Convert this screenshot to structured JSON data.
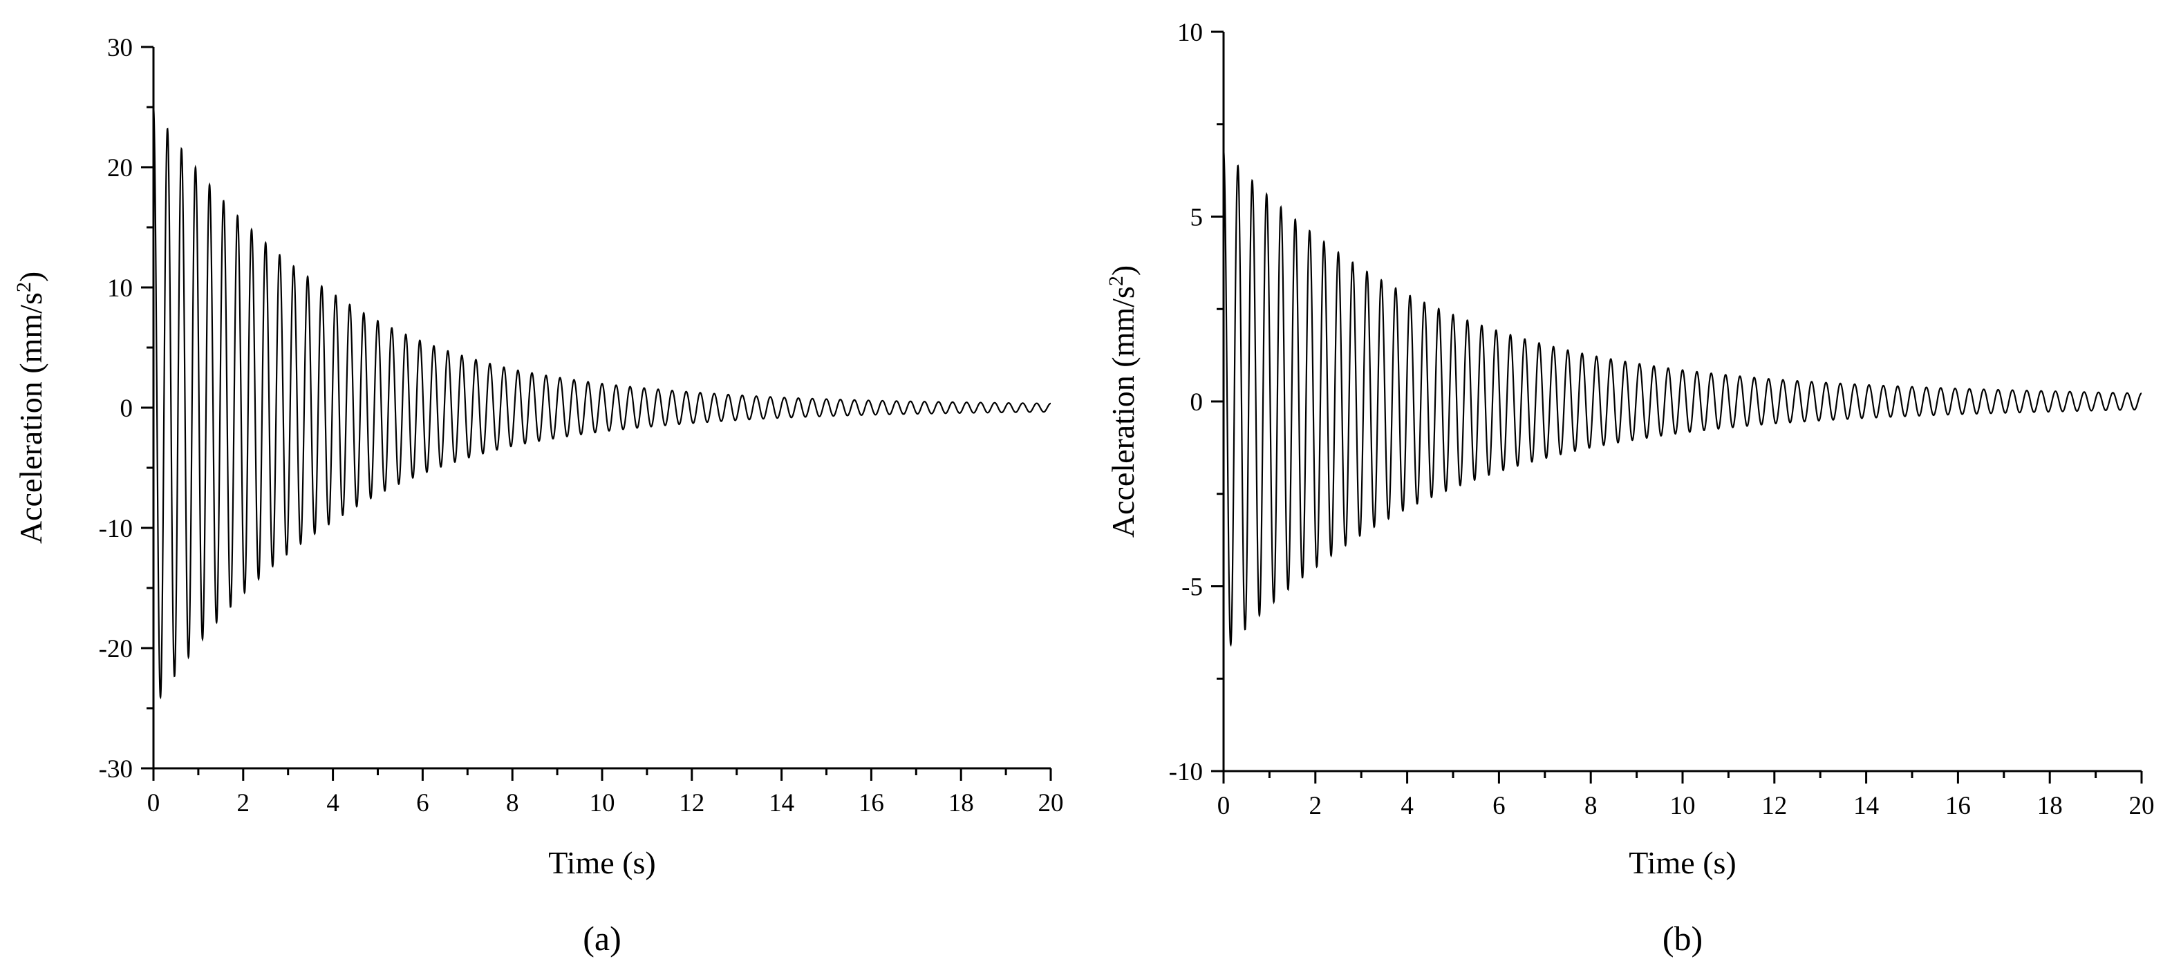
{
  "chart_data": [
    {
      "type": "line",
      "panel_label": "(a)",
      "xlabel": "Time (s)",
      "ylabel": "Acceleration (mm/s²)",
      "ylabel_parts": {
        "text": "Acceleration (mm/s",
        "sup": "2",
        "close": ")"
      },
      "xlim": [
        0,
        20
      ],
      "ylim": [
        -30,
        30
      ],
      "xticks": [
        "0",
        "2",
        "4",
        "6",
        "8",
        "10",
        "12",
        "14",
        "16",
        "18",
        "20"
      ],
      "yticks": [
        "-30",
        "-20",
        "-10",
        "0",
        "10",
        "20",
        "30"
      ],
      "grid": false,
      "legend": "none",
      "series": [
        {
          "signal": "damped oscillation",
          "color": "#000000",
          "peak_envelope": {
            "t": [
              0,
              2,
              4,
              6,
              8,
              10,
              12,
              14,
              16,
              18,
              20
            ],
            "amplitude": [
              25,
              15.5,
              9.5,
              5.5,
              3.2,
              2.0,
              1.3,
              0.85,
              0.6,
              0.45,
              0.35
            ]
          },
          "frequency_hz": 3.2
        }
      ]
    },
    {
      "type": "line",
      "panel_label": "(b)",
      "xlabel": "Time (s)",
      "ylabel": "Acceleration (mm/s²)",
      "ylabel_parts": {
        "text": "Acceleration (mm/s",
        "sup": "2",
        "close": ")"
      },
      "xlim": [
        0,
        20
      ],
      "ylim": [
        -10,
        10
      ],
      "xticks": [
        "0",
        "2",
        "4",
        "6",
        "8",
        "10",
        "12",
        "14",
        "16",
        "18",
        "20"
      ],
      "yticks": [
        "-10",
        "-5",
        "0",
        "5",
        "10"
      ],
      "grid": false,
      "legend": "none",
      "series": [
        {
          "signal": "damped oscillation",
          "color": "#000000",
          "peak_envelope": {
            "t": [
              0,
              2,
              4,
              6,
              8,
              10,
              12,
              14,
              16,
              18,
              20
            ],
            "amplitude": [
              6.8,
              4.5,
              2.9,
              1.9,
              1.25,
              0.85,
              0.6,
              0.45,
              0.35,
              0.28,
              0.22
            ]
          },
          "frequency_hz": 3.2
        }
      ]
    }
  ]
}
